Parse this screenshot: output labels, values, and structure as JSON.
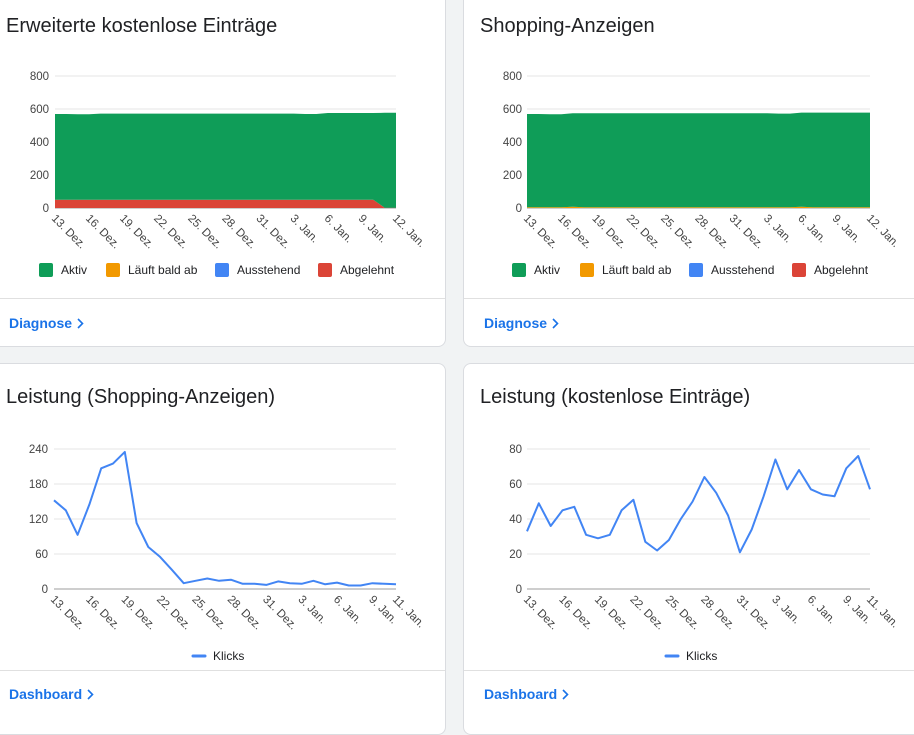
{
  "cards": [
    {
      "title": "Erweiterte kostenlose Einträge",
      "link": "Diagnose"
    },
    {
      "title": "Shopping-Anzeigen",
      "link": "Diagnose"
    },
    {
      "title": "Leistung (Shopping-Anzeigen)",
      "link": "Dashboard"
    },
    {
      "title": "Leistung (kostenlose Einträge)",
      "link": "Dashboard"
    }
  ],
  "colors": {
    "aktiv": "#0f9d58",
    "laeuft": "#f29900",
    "ausstehend": "#4285f4",
    "abgelehnt": "#db4437",
    "line": "#4285f4"
  },
  "chart_data": [
    {
      "type": "area",
      "stacked": true,
      "x": [
        "13. Dez.",
        "14. Dez.",
        "15. Dez.",
        "16. Dez.",
        "17. Dez.",
        "18. Dez.",
        "19. Dez.",
        "20. Dez.",
        "21. Dez.",
        "22. Dez.",
        "23. Dez.",
        "24. Dez.",
        "25. Dez.",
        "26. Dez.",
        "27. Dez.",
        "28. Dez.",
        "29. Dez.",
        "30. Dez.",
        "31. Dez.",
        "1. Jan.",
        "2. Jan.",
        "3. Jan.",
        "4. Jan.",
        "5. Jan.",
        "6. Jan.",
        "7. Jan.",
        "8. Jan.",
        "9. Jan.",
        "10. Jan.",
        "11. Jan.",
        "12. Jan."
      ],
      "x_tick_labels": [
        "13. Dez.",
        "16. Dez.",
        "19. Dez.",
        "22. Dez.",
        "25. Dez.",
        "28. Dez.",
        "31. Dez.",
        "3. Jan.",
        "6. Jan.",
        "9. Jan.",
        "12. Jan."
      ],
      "ylim": [
        0,
        800
      ],
      "y_ticks": [
        0,
        200,
        400,
        600,
        800
      ],
      "legend": "bottom",
      "series": [
        {
          "name": "Abgelehnt",
          "color_key": "abgelehnt",
          "values": [
            50,
            50,
            50,
            50,
            50,
            50,
            50,
            50,
            50,
            50,
            50,
            50,
            50,
            50,
            50,
            50,
            50,
            50,
            50,
            50,
            50,
            50,
            50,
            50,
            50,
            50,
            50,
            50,
            50,
            2,
            2
          ]
        },
        {
          "name": "Ausstehend",
          "color_key": "ausstehend",
          "values": [
            0,
            0,
            0,
            0,
            0,
            0,
            0,
            0,
            0,
            0,
            0,
            0,
            0,
            0,
            0,
            0,
            0,
            0,
            0,
            0,
            0,
            0,
            0,
            0,
            0,
            0,
            0,
            0,
            0,
            0,
            0
          ]
        },
        {
          "name": "Läuft bald ab",
          "color_key": "laeuft",
          "values": [
            0,
            0,
            0,
            0,
            0,
            0,
            0,
            0,
            0,
            0,
            0,
            0,
            0,
            0,
            0,
            0,
            0,
            0,
            0,
            0,
            0,
            0,
            0,
            0,
            0,
            0,
            0,
            0,
            0,
            0,
            0
          ]
        },
        {
          "name": "Aktiv",
          "color_key": "aktiv",
          "values": [
            520,
            520,
            518,
            518,
            522,
            522,
            522,
            522,
            522,
            522,
            522,
            522,
            522,
            522,
            522,
            522,
            522,
            522,
            522,
            522,
            522,
            522,
            520,
            520,
            526,
            526,
            526,
            526,
            526,
            575,
            575
          ]
        }
      ],
      "legend_order": [
        "Aktiv",
        "Läuft bald ab",
        "Ausstehend",
        "Abgelehnt"
      ]
    },
    {
      "type": "area",
      "stacked": true,
      "x": [
        "13. Dez.",
        "14. Dez.",
        "15. Dez.",
        "16. Dez.",
        "17. Dez.",
        "18. Dez.",
        "19. Dez.",
        "20. Dez.",
        "21. Dez.",
        "22. Dez.",
        "23. Dez.",
        "24. Dez.",
        "25. Dez.",
        "26. Dez.",
        "27. Dez.",
        "28. Dez.",
        "29. Dez.",
        "30. Dez.",
        "31. Dez.",
        "1. Jan.",
        "2. Jan.",
        "3. Jan.",
        "4. Jan.",
        "5. Jan.",
        "6. Jan.",
        "7. Jan.",
        "8. Jan.",
        "9. Jan.",
        "10. Jan.",
        "11. Jan.",
        "12. Jan."
      ],
      "x_tick_labels": [
        "13. Dez.",
        "16. Dez.",
        "19. Dez.",
        "22. Dez.",
        "25. Dez.",
        "28. Dez.",
        "31. Dez.",
        "3. Jan.",
        "6. Jan.",
        "9. Jan.",
        "12. Jan."
      ],
      "ylim": [
        0,
        800
      ],
      "y_ticks": [
        0,
        200,
        400,
        600,
        800
      ],
      "legend": "bottom",
      "series": [
        {
          "name": "Abgelehnt",
          "color_key": "abgelehnt",
          "values": [
            0,
            0,
            0,
            0,
            0,
            0,
            0,
            0,
            0,
            0,
            0,
            0,
            0,
            0,
            0,
            0,
            0,
            0,
            0,
            0,
            0,
            0,
            0,
            0,
            0,
            0,
            0,
            0,
            0,
            0,
            0
          ]
        },
        {
          "name": "Ausstehend",
          "color_key": "ausstehend",
          "values": [
            0,
            0,
            0,
            0,
            0,
            0,
            0,
            0,
            0,
            0,
            0,
            0,
            0,
            0,
            0,
            0,
            0,
            0,
            0,
            0,
            0,
            0,
            0,
            0,
            0,
            0,
            0,
            0,
            0,
            0,
            0
          ]
        },
        {
          "name": "Läuft bald ab",
          "color_key": "laeuft",
          "values": [
            4,
            4,
            4,
            4,
            8,
            4,
            4,
            4,
            4,
            4,
            4,
            4,
            4,
            4,
            4,
            4,
            4,
            4,
            4,
            4,
            4,
            4,
            4,
            4,
            8,
            4,
            4,
            4,
            4,
            4,
            4
          ]
        },
        {
          "name": "Aktiv",
          "color_key": "aktiv",
          "values": [
            566,
            566,
            564,
            564,
            566,
            570,
            570,
            570,
            570,
            570,
            570,
            570,
            570,
            570,
            570,
            570,
            570,
            570,
            570,
            570,
            570,
            570,
            568,
            568,
            570,
            574,
            574,
            574,
            574,
            574,
            574
          ]
        }
      ],
      "legend_order": [
        "Aktiv",
        "Läuft bald ab",
        "Ausstehend",
        "Abgelehnt"
      ]
    },
    {
      "type": "line",
      "x": [
        "13. Dez.",
        "14. Dez.",
        "15. Dez.",
        "16. Dez.",
        "17. Dez.",
        "18. Dez.",
        "19. Dez.",
        "20. Dez.",
        "21. Dez.",
        "22. Dez.",
        "23. Dez.",
        "24. Dez.",
        "25. Dez.",
        "26. Dez.",
        "27. Dez.",
        "28. Dez.",
        "29. Dez.",
        "30. Dez.",
        "31. Dez.",
        "1. Jan.",
        "2. Jan.",
        "3. Jan.",
        "4. Jan.",
        "5. Jan.",
        "6. Jan.",
        "7. Jan.",
        "8. Jan.",
        "9. Jan.",
        "10. Jan.",
        "11. Jan."
      ],
      "x_tick_labels": [
        "13. Dez.",
        "16. Dez.",
        "19. Dez.",
        "22. Dez.",
        "25. Dez.",
        "28. Dez.",
        "31. Dez.",
        "3. Jan.",
        "6. Jan.",
        "9. Jan.",
        "11. Jan."
      ],
      "ylim": [
        0,
        240
      ],
      "y_ticks": [
        0,
        60,
        120,
        180,
        240
      ],
      "legend": "bottom",
      "series": [
        {
          "name": "Klicks",
          "color_key": "line",
          "values": [
            152,
            135,
            93,
            145,
            207,
            215,
            235,
            113,
            72,
            55,
            33,
            10,
            14,
            18,
            14,
            16,
            9,
            9,
            7,
            13,
            10,
            9,
            14,
            8,
            11,
            6,
            6,
            10,
            9,
            8
          ]
        }
      ]
    },
    {
      "type": "line",
      "x": [
        "13. Dez.",
        "14. Dez.",
        "15. Dez.",
        "16. Dez.",
        "17. Dez.",
        "18. Dez.",
        "19. Dez.",
        "20. Dez.",
        "21. Dez.",
        "22. Dez.",
        "23. Dez.",
        "24. Dez.",
        "25. Dez.",
        "26. Dez.",
        "27. Dez.",
        "28. Dez.",
        "29. Dez.",
        "30. Dez.",
        "31. Dez.",
        "1. Jan.",
        "2. Jan.",
        "3. Jan.",
        "4. Jan.",
        "5. Jan.",
        "6. Jan.",
        "7. Jan.",
        "8. Jan.",
        "9. Jan.",
        "10. Jan.",
        "11. Jan."
      ],
      "x_tick_labels": [
        "13. Dez.",
        "16. Dez.",
        "19. Dez.",
        "22. Dez.",
        "25. Dez.",
        "28. Dez.",
        "31. Dez.",
        "3. Jan.",
        "6. Jan.",
        "9. Jan.",
        "11. Jan."
      ],
      "ylim": [
        0,
        80
      ],
      "y_ticks": [
        0,
        20,
        40,
        60,
        80
      ],
      "legend": "bottom",
      "series": [
        {
          "name": "Klicks",
          "color_key": "line",
          "values": [
            33,
            49,
            36,
            45,
            47,
            31,
            29,
            31,
            45,
            51,
            27,
            22,
            28,
            40,
            50,
            64,
            55,
            42,
            21,
            34,
            53,
            74,
            57,
            68,
            57,
            54,
            53,
            69,
            76,
            57
          ]
        }
      ]
    }
  ]
}
